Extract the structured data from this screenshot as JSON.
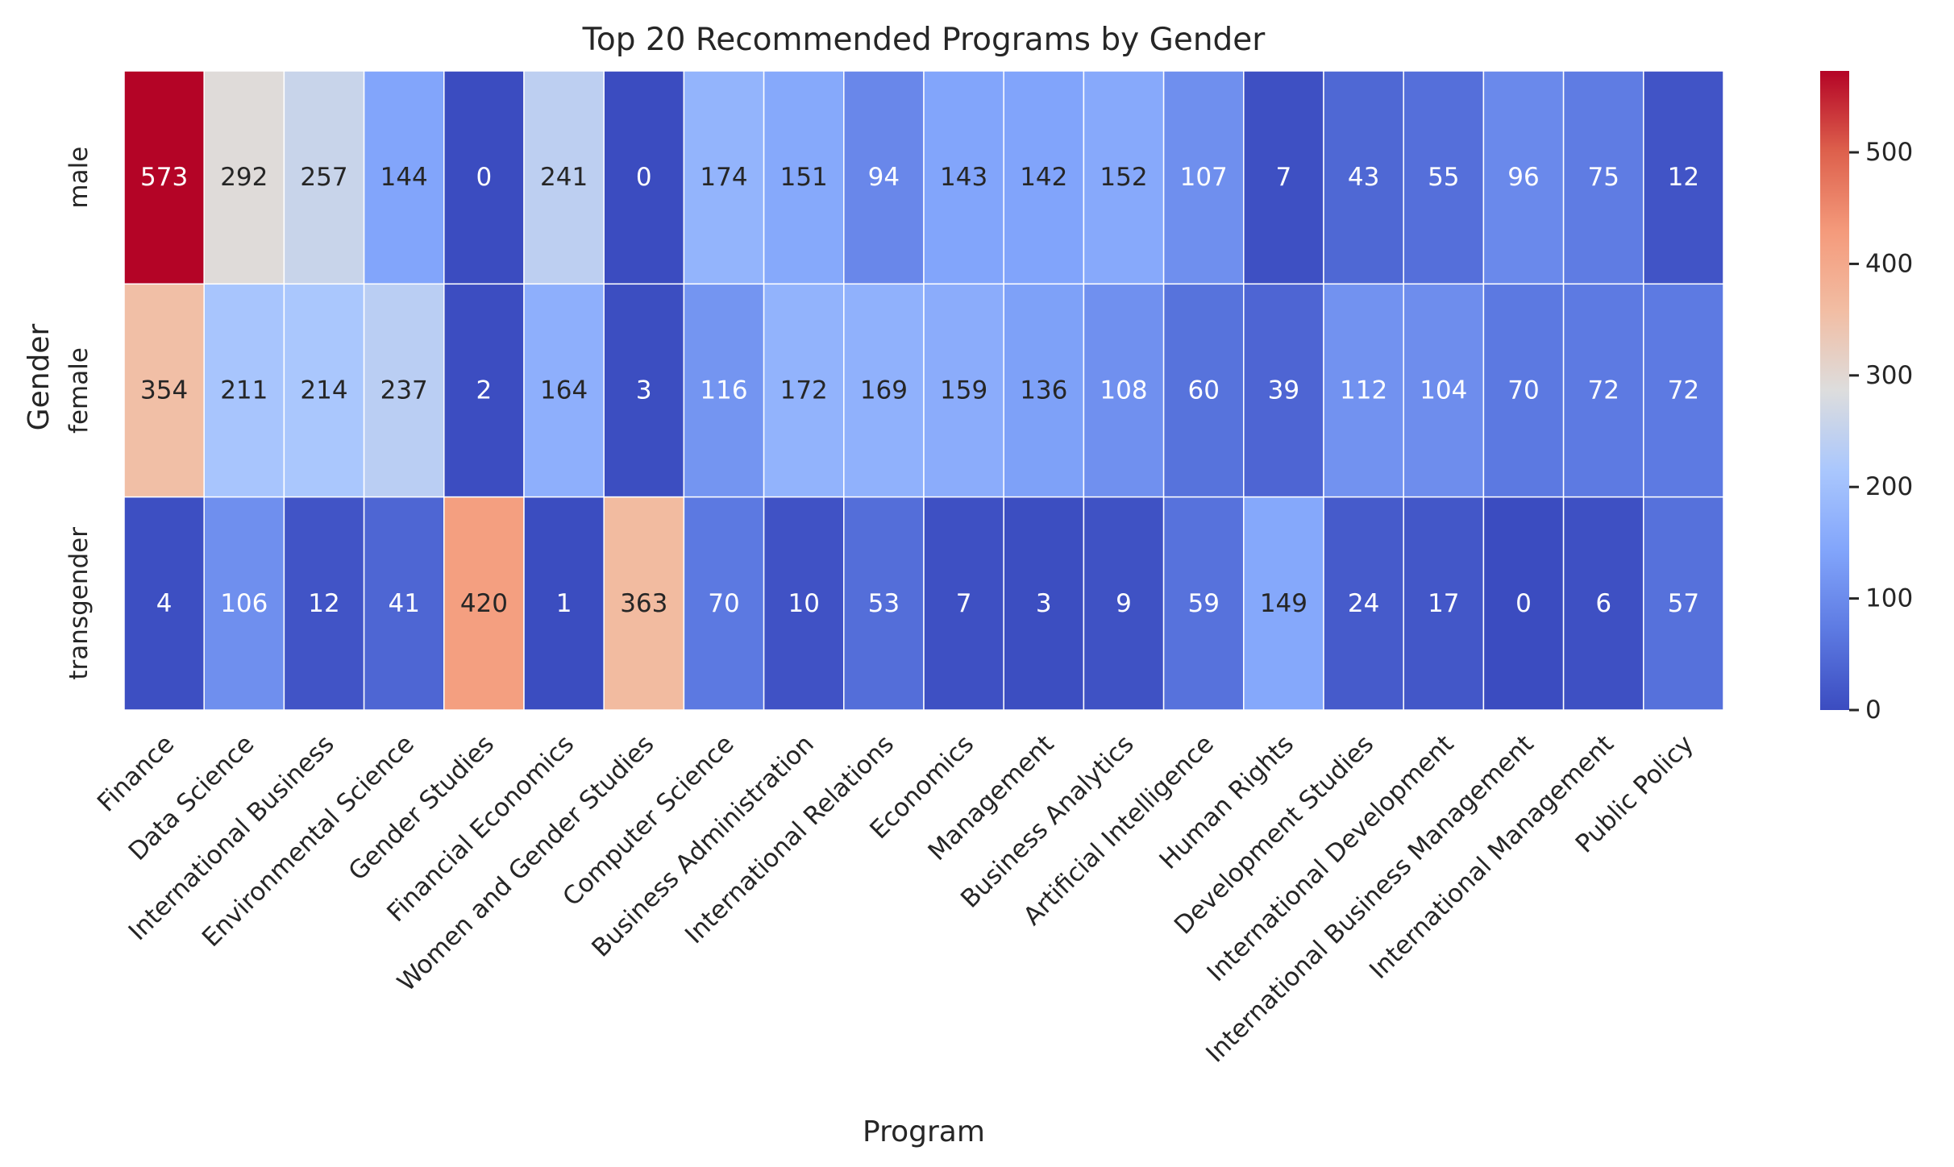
{
  "chart_data": {
    "type": "heatmap",
    "title": "Top 20 Recommended Programs by Gender",
    "xlabel": "Program",
    "ylabel": "Gender",
    "x_categories": [
      "Finance",
      "Data Science",
      "International Business",
      "Environmental Science",
      "Gender Studies",
      "Financial Economics",
      "Women and Gender Studies",
      "Computer Science",
      "Business Administration",
      "International Relations",
      "Economics",
      "Management",
      "Business Analytics",
      "Artificial Intelligence",
      "Human Rights",
      "Development Studies",
      "International Development",
      "International Business Management",
      "International Management",
      "Public Policy"
    ],
    "y_categories": [
      "male",
      "female",
      "transgender"
    ],
    "values": [
      [
        573,
        292,
        257,
        144,
        0,
        241,
        0,
        174,
        151,
        94,
        143,
        142,
        152,
        107,
        7,
        43,
        55,
        96,
        75,
        12
      ],
      [
        354,
        211,
        214,
        237,
        2,
        164,
        3,
        116,
        172,
        169,
        159,
        136,
        108,
        60,
        39,
        112,
        104,
        70,
        72,
        72
      ],
      [
        4,
        106,
        12,
        41,
        420,
        1,
        363,
        70,
        10,
        53,
        7,
        3,
        9,
        59,
        149,
        24,
        17,
        0,
        6,
        57
      ]
    ],
    "annotated": true,
    "colormap": "coolwarm",
    "vmin": 0,
    "vmax": 573,
    "colorbar_ticks": [
      0,
      100,
      200,
      300,
      400,
      500
    ],
    "colors": {
      "text_dark": "#262626",
      "text_light": "#ffffff",
      "cell_border": "#ffffff"
    }
  }
}
